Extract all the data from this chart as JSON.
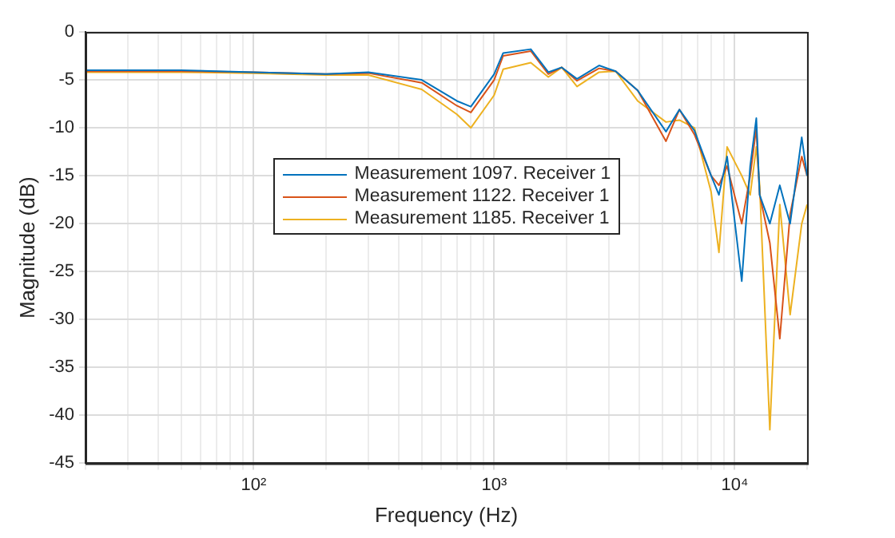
{
  "chart_data": {
    "type": "line",
    "xlabel": "Frequency (Hz)",
    "ylabel": "Magnitude (dB)",
    "x": [
      20,
      50,
      100,
      200,
      300,
      500,
      700,
      800,
      1000,
      1090,
      1420,
      1680,
      1910,
      2210,
      2730,
      3200,
      3950,
      5180,
      5890,
      6800,
      7980,
      8600,
      9300,
      10700,
      11600,
      12300,
      12700,
      14000,
      15400,
      17000,
      19000,
      20000
    ],
    "series": [
      {
        "name": "Measurement 1097. Receiver 1",
        "color": "#0072bd",
        "values": [
          -4.0,
          -4.0,
          -4.2,
          -4.4,
          -4.2,
          -5.0,
          -7.2,
          -7.8,
          -4.4,
          -2.2,
          -1.8,
          -4.2,
          -3.7,
          -4.9,
          -3.5,
          -4.1,
          -6.1,
          -10.4,
          -8.1,
          -10.3,
          -15,
          -17,
          -13,
          -26,
          -14,
          -9,
          -17,
          -20,
          -16,
          -20,
          -11,
          -15
        ]
      },
      {
        "name": "Measurement 1122. Receiver 1",
        "color": "#d95319",
        "values": [
          -4.1,
          -4.1,
          -4.2,
          -4.4,
          -4.3,
          -5.3,
          -7.7,
          -8.4,
          -5.0,
          -2.5,
          -2.0,
          -4.4,
          -3.7,
          -5.1,
          -3.8,
          -4.1,
          -6.1,
          -11.4,
          -8.1,
          -10.7,
          -15,
          -16,
          -14,
          -20,
          -15,
          -10,
          -17,
          -22,
          -32,
          -19,
          -13,
          -15
        ]
      },
      {
        "name": "Measurement 1185. Receiver 1",
        "color": "#edb120",
        "values": [
          -4.2,
          -4.2,
          -4.3,
          -4.5,
          -4.5,
          -6.0,
          -8.6,
          -10.0,
          -6.6,
          -3.9,
          -3.2,
          -4.7,
          -3.7,
          -5.7,
          -4.2,
          -4.1,
          -7.2,
          -9.4,
          -9.2,
          -10.0,
          -16.7,
          -23,
          -12,
          -15,
          -17,
          -12,
          -16,
          -41.5,
          -18,
          -29.5,
          -20,
          -18
        ]
      }
    ],
    "log": "x",
    "xlim": [
      20,
      20000
    ],
    "xticks": [
      {
        "value": 20,
        "label": null
      },
      {
        "value": 30,
        "label": null
      },
      {
        "value": 40,
        "label": null
      },
      {
        "value": 50,
        "label": null
      },
      {
        "value": 60,
        "label": null
      },
      {
        "value": 70,
        "label": null
      },
      {
        "value": 80,
        "label": null
      },
      {
        "value": 90,
        "label": null
      },
      {
        "value": 100,
        "label": "10²"
      },
      {
        "value": 200,
        "label": null
      },
      {
        "value": 300,
        "label": null
      },
      {
        "value": 400,
        "label": null
      },
      {
        "value": 500,
        "label": null
      },
      {
        "value": 600,
        "label": null
      },
      {
        "value": 700,
        "label": null
      },
      {
        "value": 800,
        "label": null
      },
      {
        "value": 900,
        "label": null
      },
      {
        "value": 1000,
        "label": "10³"
      },
      {
        "value": 2000,
        "label": null
      },
      {
        "value": 3000,
        "label": null
      },
      {
        "value": 4000,
        "label": null
      },
      {
        "value": 5000,
        "label": null
      },
      {
        "value": 6000,
        "label": null
      },
      {
        "value": 7000,
        "label": null
      },
      {
        "value": 8000,
        "label": null
      },
      {
        "value": 9000,
        "label": null
      },
      {
        "value": 10000,
        "label": "10⁴"
      },
      {
        "value": 20000,
        "label": null
      }
    ],
    "ylim": [
      -45,
      0
    ],
    "yticks": [
      -45,
      -40,
      -35,
      -30,
      -25,
      -20,
      -15,
      -10,
      -5,
      0
    ],
    "grid": true,
    "legend": "center",
    "marker": "none",
    "line_style": "solid"
  }
}
